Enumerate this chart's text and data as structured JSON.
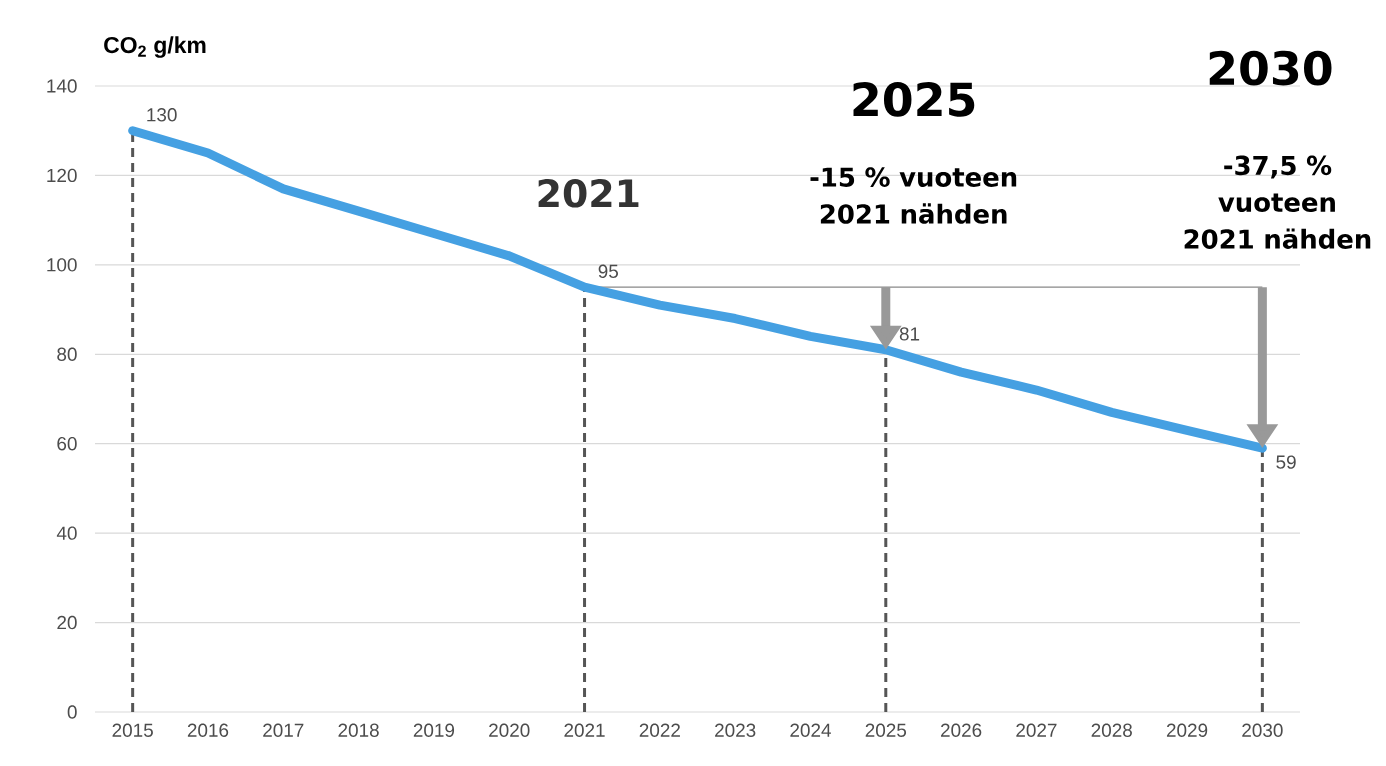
{
  "chart_data": {
    "type": "line",
    "ylabel": "CO$_{2}$ g/km",
    "x": [
      2015,
      2016,
      2017,
      2018,
      2019,
      2020,
      2021,
      2022,
      2023,
      2024,
      2025,
      2026,
      2027,
      2028,
      2029,
      2030
    ],
    "values": [
      130,
      125,
      117,
      112,
      107,
      102,
      95,
      91,
      88,
      84,
      81,
      76,
      72,
      67,
      63,
      59
    ],
    "value_labels": [
      "130",
      null,
      null,
      null,
      null,
      null,
      "95",
      null,
      null,
      null,
      "81",
      null,
      null,
      null,
      null,
      "59"
    ],
    "color": "#45a0e2",
    "marker": "none",
    "line_style": "solid",
    "xlim": [
      2014.5,
      2030.5
    ],
    "ylim": [
      0,
      140
    ],
    "xticks": [
      2015,
      2016,
      2017,
      2018,
      2019,
      2020,
      2021,
      2022,
      2023,
      2024,
      2025,
      2026,
      2027,
      2028,
      2029,
      2030
    ],
    "yticks": [
      0,
      20,
      40,
      60,
      80,
      100,
      120,
      140
    ],
    "grid": "y",
    "ref_lines": [
      {
        "axis": "x",
        "value": 2015,
        "color": "#555555",
        "line_style": "dashed"
      },
      {
        "axis": "x",
        "value": 2021,
        "color": "#555555",
        "line_style": "dashed"
      },
      {
        "axis": "x",
        "value": 2025,
        "color": "#555555",
        "line_style": "dashed"
      },
      {
        "axis": "x",
        "value": 2030,
        "color": "#555555",
        "line_style": "dashed"
      },
      {
        "axis": "y",
        "value": 95,
        "color": "#888888",
        "line_style": "solid"
      }
    ],
    "annotations": [
      "2021",
      "2025",
      "-15 % vuoteen 2021 nähden",
      "2030",
      "-37,5 % vuoteen 2021 nähden"
    ]
  }
}
